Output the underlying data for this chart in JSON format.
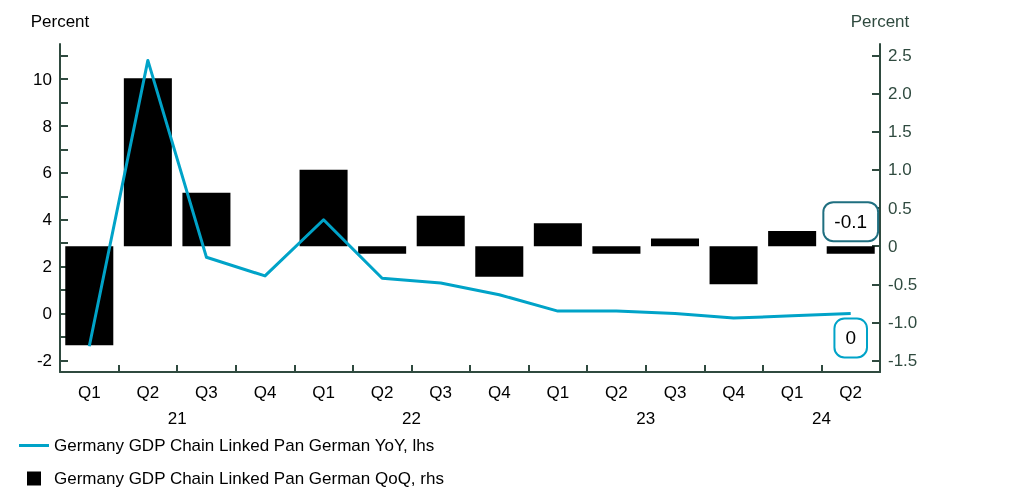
{
  "chart_data": {
    "type": "bar",
    "ylabel": "Percent",
    "y2label": "Percent",
    "categories": [
      "Q1",
      "Q2",
      "Q3",
      "Q4",
      "Q1",
      "Q2",
      "Q3",
      "Q4",
      "Q1",
      "Q2",
      "Q3",
      "Q4",
      "Q1",
      "Q2"
    ],
    "annotations": [
      "21",
      "22",
      "23",
      "24"
    ],
    "series": [
      {
        "name": "Germany GDP Chain Linked Pan German YoY, lhs",
        "type": "line",
        "color": "#00a3c8",
        "values": [
          -1.4,
          10.8,
          2.4,
          1.6,
          4.0,
          1.5,
          1.3,
          0.8,
          0.1,
          0.1,
          0.0,
          -0.2,
          -0.1,
          0.0
        ],
        "value_labels": [
          null,
          null,
          null,
          null,
          null,
          null,
          null,
          null,
          null,
          null,
          null,
          null,
          null,
          "0"
        ]
      },
      {
        "name": "Germany GDP Chain Linked Pan German QoQ, rhs",
        "axis": "y2",
        "color": "#000000",
        "values": [
          -1.3,
          2.2,
          0.7,
          0,
          1.0,
          -0.1,
          0.4,
          -0.4,
          0.3,
          -0.1,
          0.1,
          -0.5,
          0.2,
          -0.1
        ],
        "value_labels": [
          null,
          null,
          null,
          null,
          null,
          null,
          null,
          null,
          null,
          null,
          null,
          null,
          null,
          "-0.1"
        ]
      }
    ],
    "ylim": [
      -2.5,
      11.5
    ],
    "yticks": [
      -2,
      {
        "value": -1,
        "label": null
      },
      0,
      {
        "value": 1,
        "label": null
      },
      2,
      {
        "value": 3,
        "label": null
      },
      4,
      {
        "value": 5,
        "label": null
      },
      6,
      {
        "value": 7,
        "label": null
      },
      8,
      {
        "value": 9,
        "label": null
      },
      10,
      {
        "value": 11,
        "label": null
      }
    ],
    "y2lim": [
      -1.65,
      2.65
    ],
    "y2ticks": [
      {
        "value": -1.5,
        "label": "-1.5"
      },
      {
        "value": -1,
        "label": "-1.0"
      },
      {
        "value": -0.5,
        "label": "-0.5"
      },
      0,
      {
        "value": 0.5,
        "label": "0.5"
      },
      {
        "value": 1,
        "label": "1.0"
      },
      {
        "value": 1.5,
        "label": "1.5"
      },
      {
        "value": 2,
        "label": "2.0"
      },
      {
        "value": 2.5,
        "label": "2.5"
      }
    ],
    "grid": false,
    "legend": "bottom left",
    "marker": "none",
    "line_style": "solid"
  }
}
